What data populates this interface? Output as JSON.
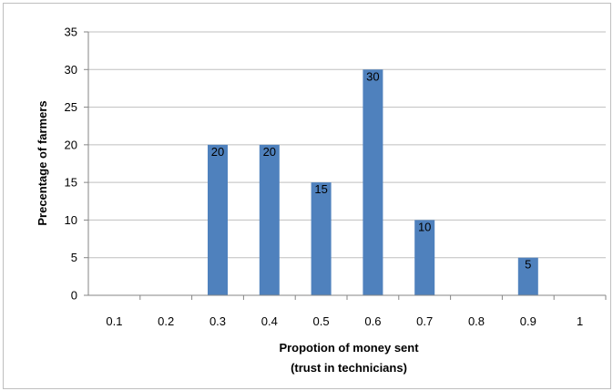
{
  "chart_data": {
    "type": "bar",
    "title": "",
    "xlabel": [
      "Propotion of money sent",
      "(trust in technicians)"
    ],
    "ylabel": "Precentage of farmers",
    "categories": [
      "0.1",
      "0.2",
      "0.3",
      "0.4",
      "0.5",
      "0.6",
      "0.7",
      "0.8",
      "0.9",
      "1"
    ],
    "values": [
      0,
      0,
      20,
      20,
      15,
      30,
      10,
      0,
      5,
      0
    ],
    "data_labels": [
      "",
      "",
      "20",
      "20",
      "15",
      "30",
      "10",
      "",
      "5",
      ""
    ],
    "ylim": [
      0,
      35
    ],
    "yticks": [
      0,
      5,
      10,
      15,
      20,
      25,
      30,
      35
    ],
    "grid": true,
    "legend": "none",
    "bar_color": "#4f81bd",
    "grid_color": "#bfbfbf",
    "axis_color": "#868686"
  }
}
